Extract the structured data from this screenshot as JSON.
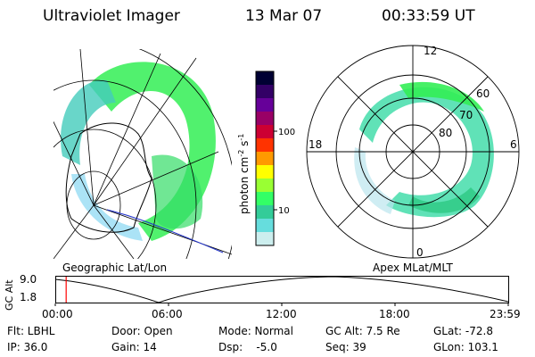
{
  "header": {
    "title": "Ultraviolet Imager",
    "date": "13 Mar 07",
    "time": "00:33:59 UT"
  },
  "geo_panel": {
    "label": "Geographic Lat/Lon"
  },
  "polar_panel": {
    "label": "Apex MLat/MLT",
    "mlt_labels": {
      "top": "12",
      "left": "18",
      "right": "6",
      "bottom": "0"
    },
    "lat_labels": [
      "60",
      "70",
      "80"
    ]
  },
  "colorbar": {
    "label": "photon cm",
    "exp1": "-2",
    "unit2": "s",
    "exp2": "-1",
    "ticks": [
      "100",
      "10"
    ],
    "colors": [
      "#000033",
      "#330066",
      "#660099",
      "#990066",
      "#cc0033",
      "#ff3300",
      "#ff9900",
      "#ffff00",
      "#99ff33",
      "#33ff66",
      "#33cc99",
      "#66dddd",
      "#cceeee"
    ]
  },
  "timeline": {
    "ylabel": "GC Alt",
    "yticks": [
      "9.0",
      "1.8"
    ],
    "xticks": [
      "00:00",
      "06:00",
      "12:00",
      "18:00",
      "23:59"
    ],
    "marker_fraction": 0.024
  },
  "info": {
    "flt": "Flt: LBHL",
    "ip": "IP: 36.0",
    "door": "Door: Open",
    "gain": "Gain: 14",
    "mode": "Mode: Normal",
    "dsp": "Dsp:    -5.0",
    "gcalt": "GC Alt: 7.5 Re",
    "seq": "Seq: 39",
    "glat": "GLat: -72.8",
    "glon": "GLon: 103.1"
  }
}
